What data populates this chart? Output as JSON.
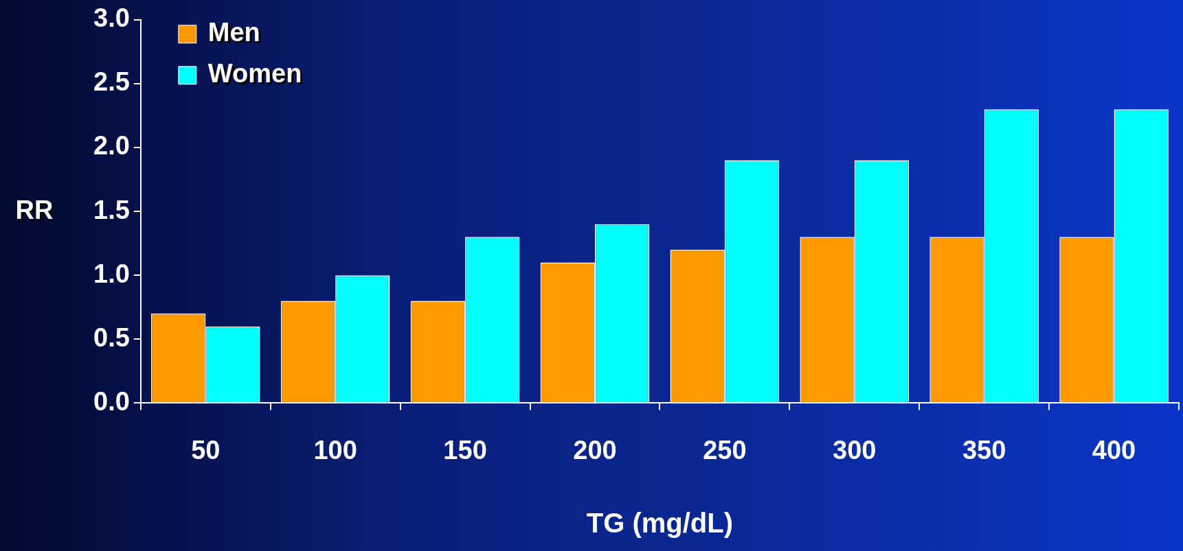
{
  "chart_data": {
    "type": "bar",
    "xlabel": "TG (mg/dL)",
    "ylabel": "RR",
    "categories": [
      "50",
      "100",
      "150",
      "200",
      "250",
      "300",
      "350",
      "400"
    ],
    "series": [
      {
        "name": "Men",
        "color": "#ff9900",
        "values": [
          0.7,
          0.8,
          0.8,
          1.1,
          1.2,
          1.3,
          1.3,
          1.3
        ]
      },
      {
        "name": "Women",
        "color": "#00ffff",
        "values": [
          0.6,
          1.0,
          1.3,
          1.4,
          1.9,
          1.9,
          2.3,
          2.3
        ]
      }
    ],
    "ylim": [
      0,
      3
    ],
    "yticks": [
      {
        "value": 0,
        "label": "0.0"
      },
      0.5,
      {
        "value": 1,
        "label": "1.0"
      },
      1.5,
      {
        "value": 2,
        "label": "2.0"
      },
      2.5,
      {
        "value": 3,
        "label": "3.0"
      }
    ],
    "grid": false,
    "legend": "top left"
  }
}
